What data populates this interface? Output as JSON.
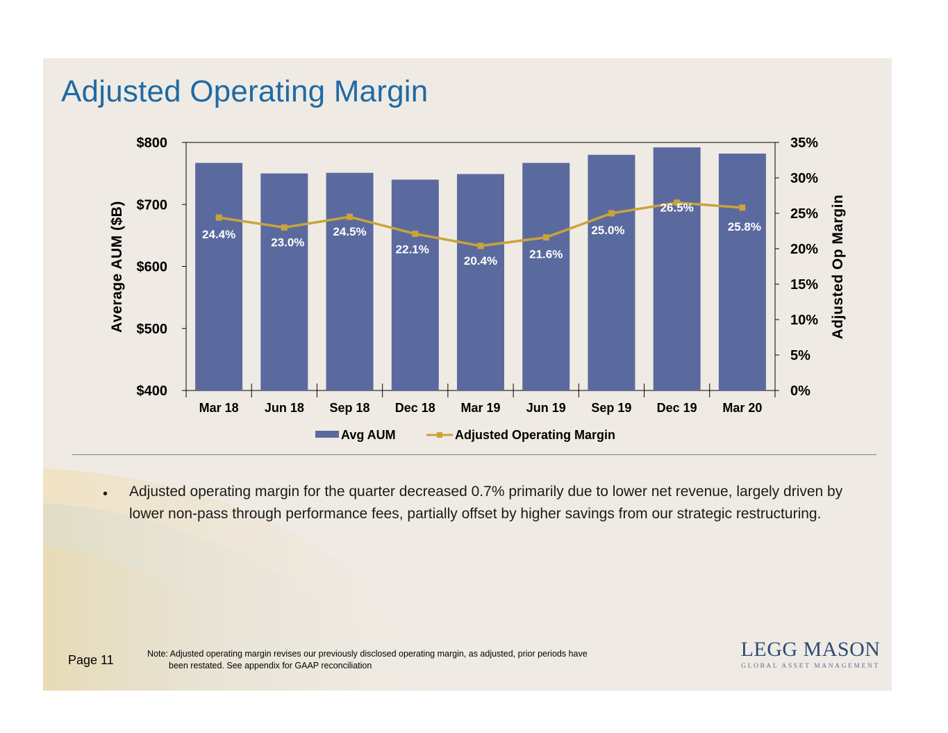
{
  "slide": {
    "title": "Adjusted Operating Margin",
    "bullet": "Adjusted operating margin for the quarter decreased 0.7% primarily due to lower net revenue, largely driven by lower non-pass through performance fees, partially offset by higher savings from our strategic restructuring.",
    "bullet_marker": "•",
    "page_label": "Page 11",
    "note_line1": "Note: Adjusted operating margin revises our previously disclosed operating margin, as adjusted, prior periods have",
    "note_line2": "been restated.  See appendix for GAAP reconciliation",
    "logo_name": "LEGG MASON",
    "logo_tagline": "GLOBAL ASSET MANAGEMENT"
  },
  "colors": {
    "bar": "#5b6a9e",
    "line": "#c9a43a",
    "title": "#1f6aa5",
    "background": "#efebe4"
  },
  "chart_data": {
    "type": "bar",
    "categories": [
      "Mar 18",
      "Jun 18",
      "Sep 18",
      "Dec 18",
      "Mar 19",
      "Jun 19",
      "Sep 19",
      "Dec 19",
      "Mar 20"
    ],
    "series": [
      {
        "name": "Avg AUM",
        "type": "bar",
        "axis": "left",
        "values": [
          767,
          750,
          751,
          740,
          749,
          767,
          780,
          792,
          782
        ]
      },
      {
        "name": "Adjusted Operating Margin",
        "type": "line",
        "axis": "right",
        "values": [
          24.4,
          23.0,
          24.5,
          22.1,
          20.4,
          21.6,
          25.0,
          26.5,
          25.8
        ],
        "labels": [
          "24.4%",
          "23.0%",
          "24.5%",
          "22.1%",
          "20.4%",
          "21.6%",
          "25.0%",
          "26.5%",
          "25.8%"
        ]
      }
    ],
    "ylabel": "Average AUM ($B)",
    "y2label": "Adjusted Op Margin",
    "ylim": [
      400,
      800
    ],
    "y2lim": [
      0,
      35
    ],
    "yticks": [
      "$400",
      "$500",
      "$600",
      "$700",
      "$800"
    ],
    "y2ticks": [
      "0%",
      "5%",
      "10%",
      "15%",
      "20%",
      "25%",
      "30%",
      "35%"
    ],
    "legend": [
      "Avg AUM",
      "Adjusted Operating Margin"
    ],
    "legend_position": "bottom",
    "grid": false
  }
}
